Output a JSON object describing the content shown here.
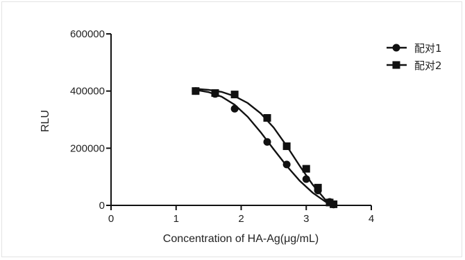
{
  "chart_data": {
    "type": "scatter",
    "title": "",
    "xlabel": "Concentration of HA-Ag(μg/mL)",
    "ylabel": "RLU",
    "xlim": [
      0,
      4
    ],
    "ylim": [
      0,
      600000
    ],
    "xticks": [
      0,
      1,
      2,
      3,
      4
    ],
    "yticks": [
      0,
      200000,
      400000,
      600000
    ],
    "xtick_labels": [
      "0",
      "1",
      "2",
      "3",
      "4"
    ],
    "ytick_labels": [
      "0",
      "200000",
      "400000",
      "600000"
    ],
    "grid": false,
    "legend_position": "top-right",
    "series": [
      {
        "name": "配对1",
        "marker": "circle",
        "color": "#111111",
        "x": [
          1.3,
          1.6,
          1.9,
          2.4,
          2.7,
          3.0,
          3.18,
          3.36,
          3.42
        ],
        "y": [
          400000,
          390000,
          338000,
          222000,
          143000,
          92000,
          52000,
          12000,
          3000
        ],
        "fit": {
          "x": [
            1.3,
            1.5,
            1.7,
            1.9,
            2.1,
            2.3,
            2.5,
            2.7,
            2.9,
            3.1,
            3.3,
            3.4
          ],
          "y": [
            404000,
            396000,
            380000,
            352000,
            310000,
            256000,
            196000,
            138000,
            86000,
            44000,
            12000,
            0
          ]
        }
      },
      {
        "name": "配对2",
        "marker": "square",
        "color": "#111111",
        "x": [
          1.3,
          1.6,
          1.9,
          2.4,
          2.7,
          3.0,
          3.18,
          3.36,
          3.42
        ],
        "y": [
          400000,
          393000,
          388000,
          306000,
          207000,
          128000,
          62000,
          10000,
          4000
        ],
        "fit": {
          "x": [
            1.3,
            1.5,
            1.7,
            1.9,
            2.1,
            2.3,
            2.5,
            2.7,
            2.9,
            3.1,
            3.3,
            3.4
          ],
          "y": [
            408000,
            404000,
            397000,
            382000,
            358000,
            322000,
            272000,
            208000,
            138000,
            72000,
            18000,
            0
          ]
        }
      }
    ]
  }
}
